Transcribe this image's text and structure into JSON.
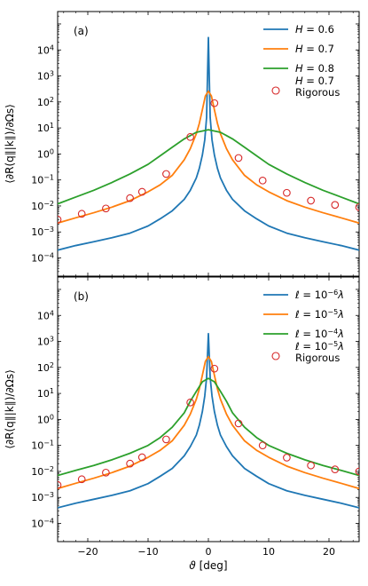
{
  "chart_data": [
    {
      "type": "line",
      "panel_label": "(a)",
      "yscale": "log",
      "xlim": [
        -25,
        25
      ],
      "ylim": [
        2e-05,
        300000
      ],
      "ylabel": "⟨∂R(q∥|k∥)/∂Ωs⟩",
      "y_ticks": [
        {
          "value": 0.0001,
          "base": "10",
          "exp": "−4"
        },
        {
          "value": 0.001,
          "base": "10",
          "exp": "−3"
        },
        {
          "value": 0.01,
          "base": "10",
          "exp": "−2"
        },
        {
          "value": 0.1,
          "base": "10",
          "exp": "−1"
        },
        {
          "value": 1,
          "base": "10",
          "exp": "0"
        },
        {
          "value": 10,
          "base": "10",
          "exp": "1"
        },
        {
          "value": 100,
          "base": "10",
          "exp": "2"
        },
        {
          "value": 1000,
          "base": "10",
          "exp": "3"
        },
        {
          "value": 10000,
          "base": "10",
          "exp": "4"
        }
      ],
      "series": [
        {
          "name": "H = 0.6",
          "legend": {
            "symbol": "H",
            "rest": " = 0.6"
          },
          "color": "#1f77b4",
          "x": [
            -25,
            -22,
            -19,
            -16,
            -13,
            -10,
            -8,
            -6,
            -4,
            -3,
            -2,
            -1.5,
            -1,
            -0.6,
            -0.3,
            0,
            0.3,
            0.6,
            1,
            1.5,
            2,
            3,
            4,
            6,
            8,
            10,
            13,
            16,
            19,
            22,
            25
          ],
          "y": [
            0.0002,
            0.0003,
            0.00042,
            0.0006,
            0.0009,
            0.0017,
            0.0032,
            0.0065,
            0.018,
            0.04,
            0.12,
            0.28,
            0.9,
            3.5,
            25,
            30000,
            25,
            3.5,
            0.9,
            0.28,
            0.12,
            0.04,
            0.018,
            0.0065,
            0.0032,
            0.0017,
            0.0009,
            0.0006,
            0.00042,
            0.0003,
            0.0002
          ]
        },
        {
          "name": "H = 0.7",
          "legend": {
            "symbol": "H",
            "rest": " = 0.7"
          },
          "color": "#ff7f0e",
          "x": [
            -25,
            -22,
            -19,
            -16,
            -13,
            -10,
            -8,
            -6,
            -4,
            -3,
            -2,
            -1.5,
            -1,
            -0.5,
            0,
            0.5,
            1,
            1.5,
            2,
            3,
            4,
            6,
            8,
            10,
            13,
            16,
            19,
            22,
            25
          ],
          "y": [
            0.0022,
            0.0035,
            0.0055,
            0.009,
            0.016,
            0.035,
            0.065,
            0.15,
            0.6,
            1.6,
            6,
            15,
            50,
            170,
            260,
            170,
            50,
            15,
            6,
            1.6,
            0.6,
            0.15,
            0.065,
            0.035,
            0.016,
            0.009,
            0.0055,
            0.0035,
            0.0022
          ]
        },
        {
          "name": "H = 0.8",
          "legend": {
            "symbol": "H",
            "rest": " = 0.8"
          },
          "color": "#2ca02c",
          "x": [
            -25,
            -22,
            -19,
            -16,
            -13,
            -10,
            -8,
            -6,
            -4,
            -2,
            0,
            2,
            4,
            6,
            8,
            10,
            13,
            16,
            19,
            22,
            25
          ],
          "y": [
            0.012,
            0.022,
            0.04,
            0.08,
            0.17,
            0.4,
            0.85,
            1.8,
            3.8,
            6.8,
            8.5,
            6.8,
            3.8,
            1.8,
            0.85,
            0.4,
            0.17,
            0.08,
            0.04,
            0.022,
            0.012
          ]
        },
        {
          "name": "H = 0.7 Rigorous",
          "legend": {
            "symbol": "H",
            "rest": " = 0.7",
            "line2": "Rigorous"
          },
          "color": "#d62728",
          "marker": "open-circle",
          "x": [
            -25,
            -21,
            -17,
            -13,
            -11,
            -7,
            -3,
            1,
            5,
            9,
            13,
            17,
            21,
            25
          ],
          "y": [
            0.003,
            0.005,
            0.008,
            0.02,
            0.035,
            0.17,
            4.5,
            90,
            0.7,
            0.095,
            0.032,
            0.016,
            0.011,
            0.009
          ]
        }
      ]
    },
    {
      "type": "line",
      "panel_label": "(b)",
      "yscale": "log",
      "xlim": [
        -25,
        25
      ],
      "ylim": [
        2e-05,
        300000
      ],
      "xlabel": "ϑ [deg]",
      "ylabel": "⟨∂R(q∥|k∥)/∂Ωs⟩",
      "x_ticks": [
        {
          "value": -20,
          "label": "−20"
        },
        {
          "value": -10,
          "label": "−10"
        },
        {
          "value": 0,
          "label": "0"
        },
        {
          "value": 10,
          "label": "10"
        },
        {
          "value": 20,
          "label": "20"
        }
      ],
      "y_ticks": [
        {
          "value": 0.0001,
          "base": "10",
          "exp": "−4"
        },
        {
          "value": 0.001,
          "base": "10",
          "exp": "−3"
        },
        {
          "value": 0.01,
          "base": "10",
          "exp": "−2"
        },
        {
          "value": 0.1,
          "base": "10",
          "exp": "−1"
        },
        {
          "value": 1,
          "base": "10",
          "exp": "0"
        },
        {
          "value": 10,
          "base": "10",
          "exp": "1"
        },
        {
          "value": 100,
          "base": "10",
          "exp": "2"
        },
        {
          "value": 1000,
          "base": "10",
          "exp": "3"
        },
        {
          "value": 10000,
          "base": "10",
          "exp": "4"
        }
      ],
      "series": [
        {
          "name": "ℓ = 10^−6 λ",
          "legend": {
            "symbol": "ℓ",
            "rest": " = 10",
            "exp": "−6",
            "suffix": "λ"
          },
          "color": "#1f77b4",
          "x": [
            -25,
            -22,
            -19,
            -16,
            -13,
            -10,
            -8,
            -6,
            -4,
            -3,
            -2,
            -1.5,
            -1,
            -0.6,
            -0.3,
            0,
            0.3,
            0.6,
            1,
            1.5,
            2,
            3,
            4,
            6,
            8,
            10,
            13,
            16,
            19,
            22,
            25
          ],
          "y": [
            0.0004,
            0.0006,
            0.00085,
            0.0012,
            0.0018,
            0.0034,
            0.0065,
            0.013,
            0.04,
            0.09,
            0.25,
            0.6,
            2,
            8,
            40,
            2000,
            40,
            8,
            2,
            0.6,
            0.25,
            0.09,
            0.04,
            0.013,
            0.0065,
            0.0034,
            0.0018,
            0.0012,
            0.00085,
            0.0006,
            0.0004
          ]
        },
        {
          "name": "ℓ = 10^−5 λ",
          "legend": {
            "symbol": "ℓ",
            "rest": " = 10",
            "exp": "−5",
            "suffix": "λ"
          },
          "color": "#ff7f0e",
          "x": [
            -25,
            -22,
            -19,
            -16,
            -13,
            -10,
            -8,
            -6,
            -4,
            -3,
            -2,
            -1.5,
            -1,
            -0.5,
            0,
            0.5,
            1,
            1.5,
            2,
            3,
            4,
            6,
            8,
            10,
            13,
            16,
            19,
            22,
            25
          ],
          "y": [
            0.0022,
            0.0035,
            0.0055,
            0.009,
            0.016,
            0.035,
            0.065,
            0.15,
            0.6,
            1.6,
            6,
            15,
            50,
            170,
            260,
            170,
            50,
            15,
            6,
            1.6,
            0.6,
            0.15,
            0.065,
            0.035,
            0.016,
            0.009,
            0.0055,
            0.0035,
            0.0022
          ]
        },
        {
          "name": "ℓ = 10^−4 λ",
          "legend": {
            "symbol": "ℓ",
            "rest": " = 10",
            "exp": "−4",
            "suffix": "λ"
          },
          "color": "#2ca02c",
          "x": [
            -25,
            -22,
            -19,
            -16,
            -13,
            -10,
            -8,
            -6,
            -4,
            -3,
            -2,
            -1,
            0,
            1,
            2,
            3,
            4,
            6,
            8,
            10,
            13,
            16,
            19,
            22,
            25
          ],
          "y": [
            0.007,
            0.011,
            0.017,
            0.028,
            0.05,
            0.1,
            0.2,
            0.5,
            1.8,
            5,
            12,
            28,
            38,
            28,
            12,
            5,
            1.8,
            0.5,
            0.2,
            0.1,
            0.05,
            0.028,
            0.017,
            0.011,
            0.007
          ]
        },
        {
          "name": "ℓ = 10^−5 λ Rigorous",
          "legend": {
            "symbol": "ℓ",
            "rest": " = 10",
            "exp": "−5",
            "suffix": "λ",
            "line2": "Rigorous"
          },
          "color": "#d62728",
          "marker": "open-circle",
          "x": [
            -25,
            -21,
            -17,
            -13,
            -11,
            -7,
            -3,
            1,
            5,
            9,
            13,
            17,
            21,
            25
          ],
          "y": [
            0.003,
            0.005,
            0.009,
            0.02,
            0.035,
            0.17,
            4.5,
            90,
            0.7,
            0.1,
            0.034,
            0.017,
            0.012,
            0.01
          ]
        }
      ]
    }
  ]
}
